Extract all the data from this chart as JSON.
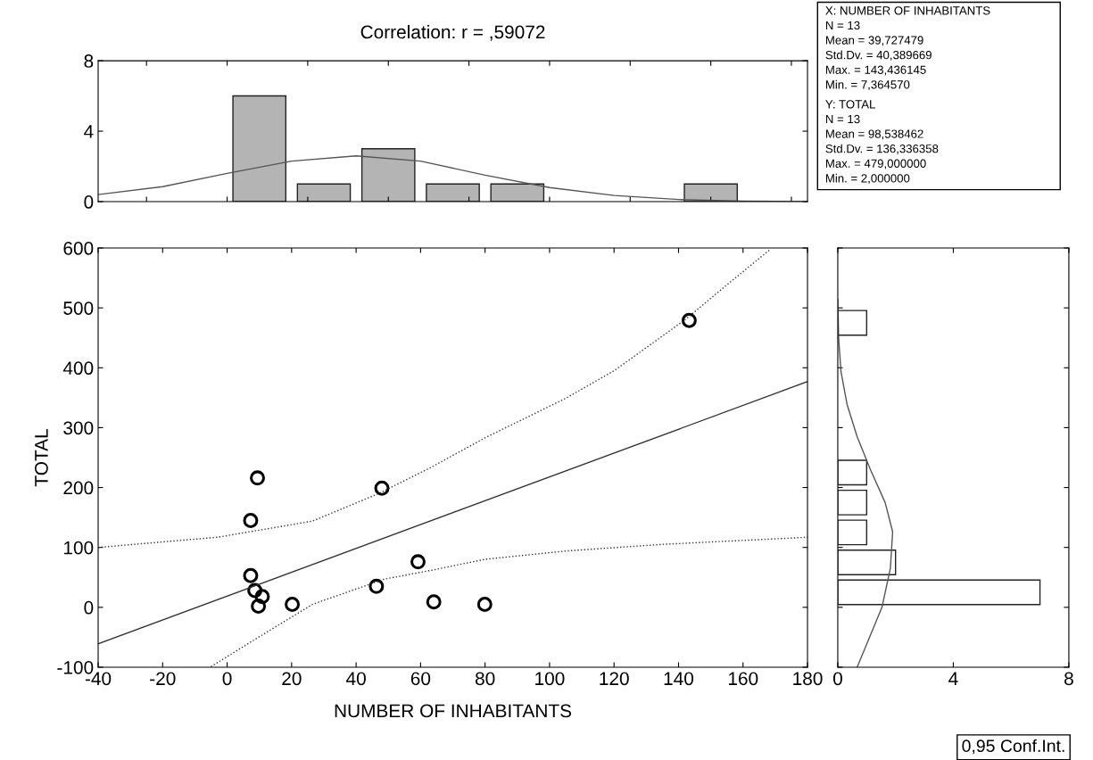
{
  "chart_data": [
    {
      "type": "histogram",
      "title": "Correlation: r = ,59072",
      "bins": [
        0,
        20,
        40,
        60,
        80,
        100,
        120,
        140,
        160
      ],
      "values": [
        6,
        1,
        3,
        1,
        1,
        0,
        0,
        1
      ],
      "color": "#b4b4b4",
      "series": [
        {
          "type": "line",
          "color": "#555555",
          "x": [
            -40,
            -20,
            0,
            20,
            40,
            60,
            80,
            100,
            120,
            140,
            160,
            180
          ],
          "values": [
            0.4,
            0.85,
            1.6,
            2.3,
            2.6,
            2.3,
            1.5,
            0.8,
            0.35,
            0.12,
            0.03,
            0.01
          ]
        }
      ],
      "xlim": [
        -40,
        180
      ],
      "ylim": [
        0,
        8
      ],
      "yticks": [
        0,
        4,
        8
      ],
      "tick_labels": "y",
      "annotations": [
        "X: NUMBER OF INHABITANTS\nN = 13\nMean = 39,727479\nStd.Dv. = 40,389669\nMax. = 143,436145\nMin. = 7,364570",
        "Y: TOTAL\nN = 13\nMean = 98,538462\nStd.Dv. = 136,336358\nMax. = 479,000000\nMin. = 2,000000"
      ]
    },
    {
      "type": "scatter",
      "xlabel": "NUMBER OF INHABITANTS",
      "ylabel": "TOTAL",
      "xlim": [
        -40,
        180
      ],
      "ylim": [
        -100,
        600
      ],
      "xticks": [
        -40,
        -20,
        0,
        20,
        40,
        60,
        80,
        100,
        120,
        140,
        160,
        180
      ],
      "yticks": [
        -100,
        0,
        100,
        200,
        300,
        400,
        500,
        600
      ],
      "series": [
        {
          "type": "scatter",
          "marker": "circle",
          "color": "#000000",
          "x": [
            9.4,
            7.3,
            7.3,
            8.6,
            10.9,
            9.7,
            20.2,
            48.0,
            46.3,
            59.2,
            64.1,
            79.9,
            143.3
          ],
          "values": [
            216,
            145,
            53,
            28,
            18,
            2,
            5,
            199,
            35,
            76,
            9,
            5,
            479
          ]
        },
        {
          "type": "line",
          "color": "#333333",
          "line_style": "solid",
          "x": [
            -40,
            180
          ],
          "values": [
            -61,
            377
          ]
        },
        {
          "type": "line",
          "color": "#333333",
          "line_style": "dotted",
          "x": [
            -40,
            -3,
            26.5,
            47,
            63,
            80,
            105,
            120,
            142,
            154,
            168.5
          ],
          "values": [
            100,
            117,
            144,
            190,
            233,
            283,
            349,
            395,
            480,
            534,
            598
          ]
        },
        {
          "type": "line",
          "color": "#333333",
          "line_style": "dotted",
          "x": [
            -5,
            8.8,
            26.5,
            48.7,
            63.5,
            79.8,
            105,
            134.5,
            180
          ],
          "values": [
            -99,
            -53,
            5,
            47,
            62,
            80,
            94,
            105,
            117
          ]
        }
      ]
    },
    {
      "type": "histogram",
      "orientation": "horizontal",
      "bins": [
        0,
        50,
        100,
        150,
        200,
        250,
        300,
        350,
        400,
        450,
        500
      ],
      "values": [
        7,
        2,
        1,
        1,
        1,
        0,
        0,
        0,
        0,
        1
      ],
      "color": "#ffffff",
      "series": [
        {
          "type": "line",
          "color": "#555555",
          "x": [
            -100,
            0,
            65,
            126,
            175,
            230,
            285,
            339,
            394,
            449,
            514
          ],
          "values": [
            0.67,
            1.53,
            1.82,
            1.9,
            1.64,
            1.13,
            0.67,
            0.32,
            0.11,
            0.03,
            0
          ]
        }
      ],
      "ylim": [
        -100,
        600
      ],
      "xlim": [
        0,
        8
      ],
      "xticks": [
        0,
        4,
        8
      ],
      "tick_labels": "x",
      "annotations": [
        "0,95 Conf.Int."
      ]
    }
  ]
}
